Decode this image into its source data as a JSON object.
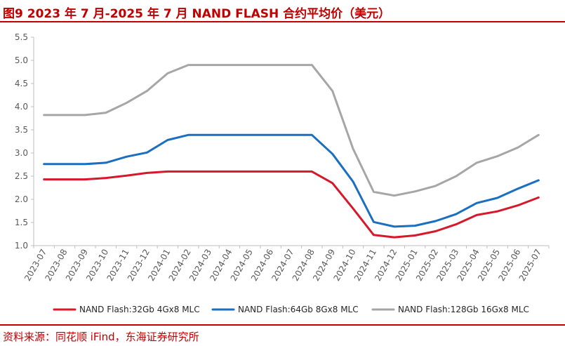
{
  "title": "图9  2023 年 7 月-2025 年 7 月 NAND FLASH 合约平均价（美元）",
  "source": "资料来源：同花顺 iFind，东海证券研究所",
  "chart_data": {
    "type": "line",
    "title": "图9  2023 年 7 月-2025 年 7 月 NAND FLASH 合约平均价（美元）",
    "xlabel": "",
    "ylabel": "",
    "ylim": [
      1.0,
      5.5
    ],
    "yticks": [
      "1.0",
      "1.5",
      "2.0",
      "2.5",
      "3.0",
      "3.5",
      "4.0",
      "4.5",
      "5.0",
      "5.5"
    ],
    "grid": false,
    "legend": "bottom",
    "categories": [
      "2023-07",
      "2023-08",
      "2023-09",
      "2023-10",
      "2023-11",
      "2023-12",
      "2024-01",
      "2024-02",
      "2024-03",
      "2024-04",
      "2024-05",
      "2024-06",
      "2024-07",
      "2024-08",
      "2024-09",
      "2024-10",
      "2024-11",
      "2024-12",
      "2025-01",
      "2025-02",
      "2025-03",
      "2025-04",
      "2025-05",
      "2025-06",
      "2025-07"
    ],
    "series": [
      {
        "name": "NAND Flash:32Gb 4Gx8 MLC",
        "color": "#d7182a",
        "values": [
          2.43,
          2.43,
          2.43,
          2.46,
          2.51,
          2.57,
          2.6,
          2.6,
          2.6,
          2.6,
          2.6,
          2.6,
          2.6,
          2.6,
          2.35,
          1.8,
          1.23,
          1.18,
          1.22,
          1.31,
          1.46,
          1.66,
          1.74,
          1.87,
          2.04
        ]
      },
      {
        "name": "NAND Flash:64Gb 8Gx8 MLC",
        "color": "#1a6fc1",
        "values": [
          2.76,
          2.76,
          2.76,
          2.79,
          2.92,
          3.01,
          3.28,
          3.39,
          3.39,
          3.39,
          3.39,
          3.39,
          3.39,
          3.39,
          2.98,
          2.38,
          1.51,
          1.41,
          1.43,
          1.53,
          1.68,
          1.92,
          2.03,
          2.23,
          2.41
        ]
      },
      {
        "name": "NAND Flash:128Gb 16Gx8 MLC",
        "color": "#a6a6a6",
        "values": [
          3.82,
          3.82,
          3.82,
          3.87,
          4.08,
          4.34,
          4.72,
          4.9,
          4.9,
          4.9,
          4.9,
          4.9,
          4.9,
          4.9,
          4.34,
          3.09,
          2.16,
          2.08,
          2.17,
          2.29,
          2.5,
          2.79,
          2.93,
          3.12,
          3.39
        ]
      }
    ]
  }
}
